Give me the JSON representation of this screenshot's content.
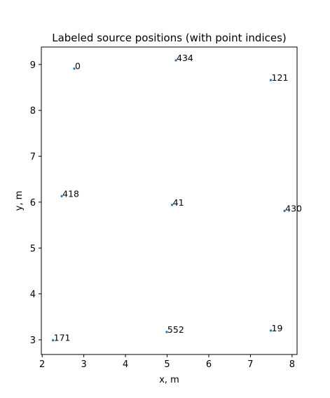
{
  "chart_data": {
    "type": "scatter",
    "title": "Labeled source positions (with point indices)",
    "xlabel": "x, m",
    "ylabel": "y, m",
    "xlim": [
      1.98,
      8.12
    ],
    "ylim": [
      2.68,
      9.38
    ],
    "xticks": [
      2,
      3,
      4,
      5,
      6,
      7,
      8
    ],
    "yticks": [
      3,
      4,
      5,
      6,
      7,
      8,
      9
    ],
    "grid": false,
    "marker_color": "#1f77b4",
    "points": [
      {
        "x": 2.77,
        "y": 8.91,
        "label": "0"
      },
      {
        "x": 5.21,
        "y": 9.09,
        "label": "434"
      },
      {
        "x": 7.49,
        "y": 8.66,
        "label": "121"
      },
      {
        "x": 2.47,
        "y": 6.13,
        "label": "418"
      },
      {
        "x": 5.12,
        "y": 5.94,
        "label": "41"
      },
      {
        "x": 7.82,
        "y": 5.81,
        "label": "430"
      },
      {
        "x": 2.26,
        "y": 2.99,
        "label": "171"
      },
      {
        "x": 4.99,
        "y": 3.17,
        "label": "552"
      },
      {
        "x": 7.49,
        "y": 3.2,
        "label": "19"
      }
    ]
  }
}
